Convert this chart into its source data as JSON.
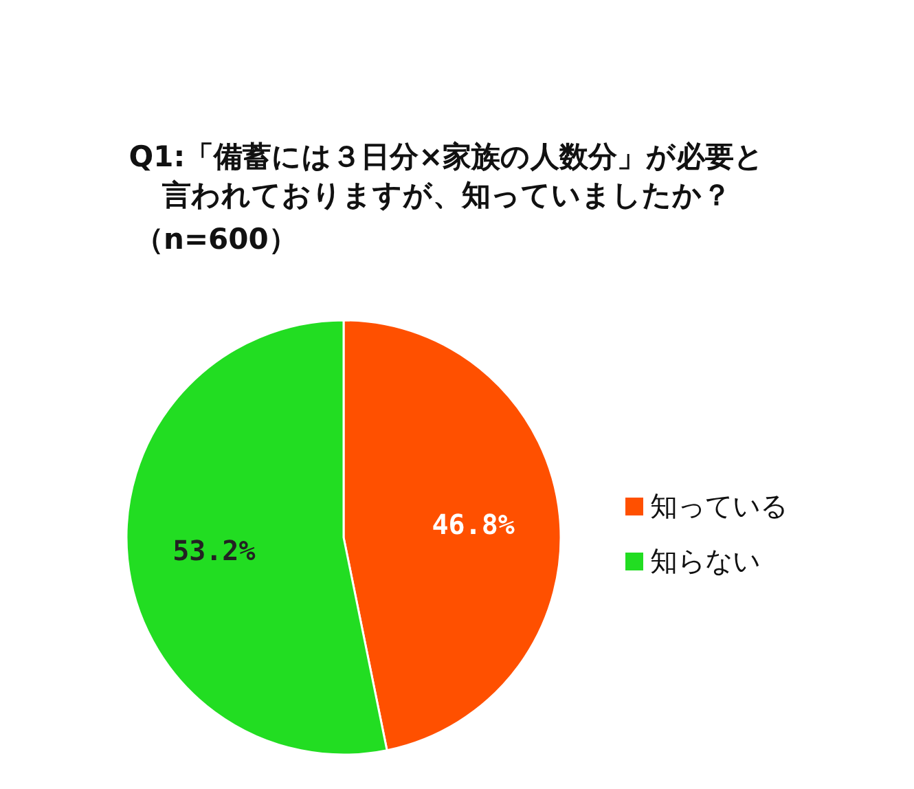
{
  "chart_data": {
    "type": "pie",
    "title": "Q1:「備蓄には３日分×家族の人数分」が必要と言われておりますが、知っていましたか？",
    "subtitle": "（n=600）",
    "categories": [
      "知っている",
      "知らない"
    ],
    "values": [
      46.8,
      53.2
    ],
    "colors": [
      "#ff5000",
      "#22dd22"
    ],
    "value_labels": [
      "46.8%",
      "53.2%"
    ],
    "legend": "right"
  }
}
